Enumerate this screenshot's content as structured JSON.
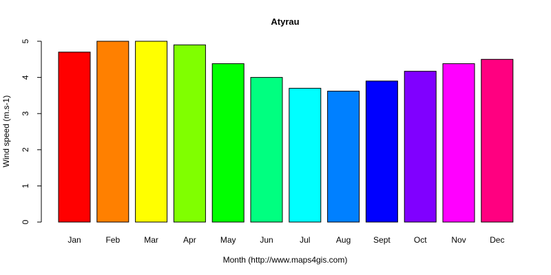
{
  "chart_data": {
    "type": "bar",
    "title": "Atyrau",
    "xlabel": "Month (http://www.maps4gis.com)",
    "ylabel": "Wind speed (m.s-1)",
    "categories": [
      "Jan",
      "Feb",
      "Mar",
      "Apr",
      "May",
      "Jun",
      "Jul",
      "Aug",
      "Sept",
      "Oct",
      "Nov",
      "Dec"
    ],
    "values": [
      4.7,
      5.0,
      5.0,
      4.9,
      4.38,
      4.0,
      3.7,
      3.62,
      3.9,
      4.17,
      4.38,
      4.5
    ],
    "colors": [
      "#FF0000",
      "#FF8000",
      "#FFFF00",
      "#80FF00",
      "#00FF00",
      "#00FF80",
      "#00FFFF",
      "#0080FF",
      "#0000FF",
      "#8000FF",
      "#FF00FF",
      "#FF0080"
    ],
    "ylim": [
      0,
      5
    ],
    "yticks": [
      "0",
      "1",
      "2",
      "3",
      "4",
      "5"
    ],
    "grid": false,
    "legend": "none"
  }
}
